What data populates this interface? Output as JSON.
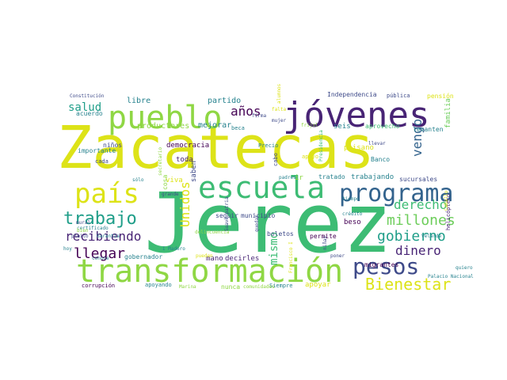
{
  "colors": {
    "yellow": "#dde318",
    "lime": "#8fd744",
    "green": "#3dbc74",
    "teal": "#26828e",
    "blue": "#33638d",
    "purple": "#440154",
    "violet": "#482475",
    "indigo": "#3e4a89",
    "mint": "#6ccd5a",
    "aqua": "#1f9e89"
  },
  "words": [
    {
      "text": "Zacatecas",
      "color": "yellow"
    },
    {
      "text": "Jerez",
      "color": "green"
    },
    {
      "text": "transformación",
      "color": "lime"
    },
    {
      "text": "jóvenes",
      "color": "violet"
    },
    {
      "text": "pueblo",
      "color": "lime"
    },
    {
      "text": "escuela",
      "color": "green"
    },
    {
      "text": "país",
      "color": "yellow"
    },
    {
      "text": "programa",
      "color": "blue"
    },
    {
      "text": "pesos",
      "color": "indigo"
    },
    {
      "text": "trabajo",
      "color": "aqua"
    },
    {
      "text": "Bienestar",
      "color": "yellow"
    },
    {
      "text": "recibiendo",
      "color": "violet"
    },
    {
      "text": "gobierno",
      "color": "aqua"
    },
    {
      "text": "millones",
      "color": "mint"
    },
    {
      "text": "llegar",
      "color": "purple"
    },
    {
      "text": "derecho",
      "color": "green"
    },
    {
      "text": "dinero",
      "color": "violet"
    },
    {
      "text": "años",
      "color": "purple"
    },
    {
      "text": "salud",
      "color": "aqua"
    },
    {
      "text": "Unidos",
      "color": "yellow"
    },
    {
      "text": "vengo",
      "color": "blue"
    },
    {
      "text": "mismo",
      "color": "green"
    },
    {
      "text": "partido",
      "color": "teal"
    },
    {
      "text": "libre",
      "color": "teal"
    },
    {
      "text": "productores",
      "color": "lime"
    },
    {
      "text": "mejorar",
      "color": "teal"
    },
    {
      "text": "democracia",
      "color": "purple"
    },
    {
      "text": "toda",
      "color": "violet"
    },
    {
      "text": "viva",
      "color": "yellow"
    },
    {
      "text": "saben",
      "color": "indigo"
    },
    {
      "text": "cosa",
      "color": "lime"
    },
    {
      "text": "importante",
      "color": "teal"
    },
    {
      "text": "cada",
      "color": "indigo"
    },
    {
      "text": "niños",
      "color": "indigo"
    },
    {
      "text": "acuerdo",
      "color": "teal"
    },
    {
      "text": "Constitución",
      "color": "indigo"
    },
    {
      "text": "Independencia",
      "color": "indigo"
    },
    {
      "text": "pública",
      "color": "indigo"
    },
    {
      "text": "pensión",
      "color": "yellow"
    },
    {
      "text": "seis",
      "color": "teal"
    },
    {
      "text": "aprovecho",
      "color": "green"
    },
    {
      "text": "levanten",
      "color": "teal"
    },
    {
      "text": "familia",
      "color": "mint"
    },
    {
      "text": "beca",
      "color": "teal"
    },
    {
      "text": "Precio",
      "color": "teal"
    },
    {
      "text": "cabo",
      "color": "indigo"
    },
    {
      "text": "apoyo",
      "color": "yellow"
    },
    {
      "text": "paisano",
      "color": "yellow"
    },
    {
      "text": "Banco",
      "color": "teal"
    },
    {
      "text": "tratado",
      "color": "teal"
    },
    {
      "text": "trabajando",
      "color": "teal"
    },
    {
      "text": "sucursales",
      "color": "indigo"
    },
    {
      "text": "seguir",
      "color": "indigo"
    },
    {
      "text": "municipio",
      "color": "indigo"
    },
    {
      "text": "boletos",
      "color": "indigo"
    },
    {
      "text": "beso",
      "color": "purple"
    },
    {
      "text": "permite",
      "color": "purple"
    },
    {
      "text": "mano",
      "color": "violet"
    },
    {
      "text": "decirles",
      "color": "violet"
    },
    {
      "text": "gobernador",
      "color": "teal"
    },
    {
      "text": "migrantes",
      "color": "purple"
    },
    {
      "text": "apoyar",
      "color": "yellow"
    },
    {
      "text": "nunca",
      "color": "lime"
    },
    {
      "text": "apoyando",
      "color": "teal"
    },
    {
      "text": "corrupción",
      "color": "purple"
    },
    {
      "text": "Marina",
      "color": "lime"
    },
    {
      "text": "Siempre",
      "color": "teal"
    },
    {
      "text": "comunidades",
      "color": "lime"
    },
    {
      "text": "helicóptero",
      "color": "violet"
    },
    {
      "text": "Palacio Nacional",
      "color": "teal"
    },
    {
      "text": "quiero",
      "color": "teal"
    },
    {
      "text": "Velarde",
      "color": "teal"
    },
    {
      "text": "crédito",
      "color": "teal"
    },
    {
      "text": "llevar",
      "color": "indigo"
    },
    {
      "text": "tiempo",
      "color": "teal"
    },
    {
      "text": "certificado",
      "color": "teal"
    },
    {
      "text": "Garantía",
      "color": "teal"
    },
    {
      "text": "pleito",
      "color": "indigo"
    },
    {
      "text": "mural",
      "color": "indigo"
    },
    {
      "text": "bien",
      "color": "lime"
    },
    {
      "text": "hoy",
      "color": "teal"
    },
    {
      "text": "conoce",
      "color": "teal"
    },
    {
      "text": "I Madero",
      "color": "teal"
    },
    {
      "text": "pueden",
      "color": "yellow"
    },
    {
      "text": "delincuencia",
      "color": "lime"
    },
    {
      "text": "Suave patria",
      "color": "indigo"
    },
    {
      "text": "quedar",
      "color": "indigo"
    },
    {
      "text": "niñas",
      "color": "indigo"
    },
    {
      "text": "poner",
      "color": "indigo"
    },
    {
      "text": "Presidencia",
      "color": "green"
    },
    {
      "text": "padres",
      "color": "teal"
    },
    {
      "text": "Francisco I",
      "color": "yellow"
    },
    {
      "text": "grande",
      "color": "indigo"
    },
    {
      "text": "secretario",
      "color": "lime"
    },
    {
      "text": "sólo",
      "color": "teal"
    },
    {
      "text": "firma",
      "color": "indigo"
    },
    {
      "text": "mujer",
      "color": "indigo"
    },
    {
      "text": "falta",
      "color": "yellow"
    },
    {
      "text": "frijol",
      "color": "lime"
    },
    {
      "text": "alumnos",
      "color": "yellow"
    },
    {
      "text": "Caballo",
      "color": "yellow"
    },
    {
      "text": "ir",
      "color": "lime"
    }
  ]
}
